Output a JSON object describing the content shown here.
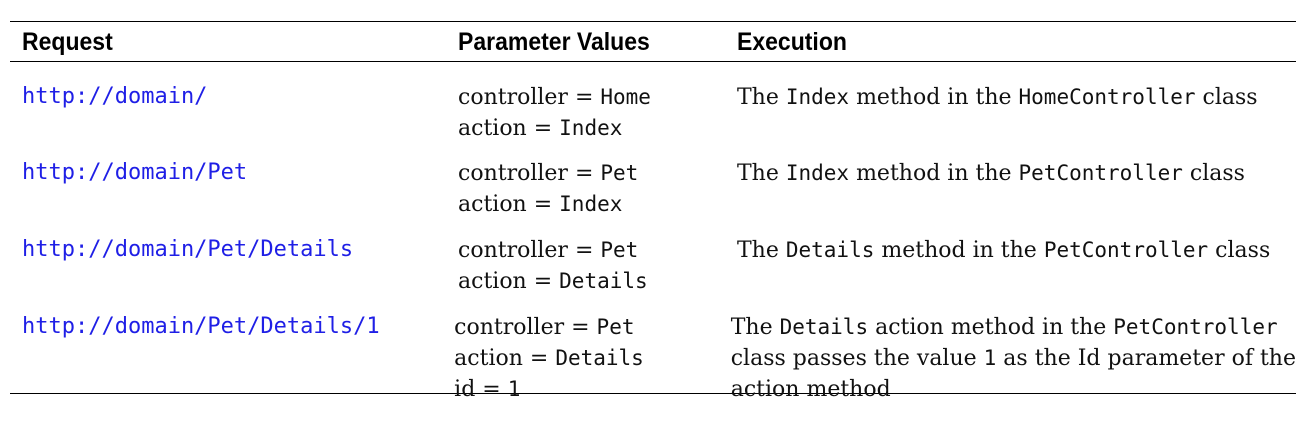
{
  "headers": {
    "request": "Request",
    "params": "Parameter Values",
    "execution": "Execution"
  },
  "rows": [
    {
      "url": "http://domain/",
      "controller": "Home",
      "action": "Index",
      "exec": {
        "p1": "The ",
        "c1": "Index",
        "p2": " method in the ",
        "c2": "HomeController",
        "p3": " class"
      }
    },
    {
      "url": "http://domain/Pet",
      "controller": "Pet",
      "action": "Index",
      "exec": {
        "p1": "The ",
        "c1": "Index",
        "p2": " method in the ",
        "c2": "PetController",
        "p3": " class"
      }
    },
    {
      "url": "http://domain/Pet/Details",
      "controller": "Pet",
      "action": "Details",
      "exec": {
        "p1": "The ",
        "c1": "Details",
        "p2": " method in the ",
        "c2": "PetController",
        "p3": " class"
      }
    },
    {
      "url": "http://domain/Pet/Details/1",
      "controller": "Pet",
      "action": "Details",
      "id": "1",
      "exec": {
        "p1": "The ",
        "c1": "Details",
        "p2": " action method in the ",
        "c2": "PetController",
        "line2_p1": "class passes the value ",
        "line2_c1": "1",
        "line2_p2": " as the Id parameter of the",
        "line3": "action method"
      }
    }
  ],
  "labels": {
    "controller_prefix": "controller = ",
    "action_prefix": "action = ",
    "id_prefix": "id = "
  }
}
